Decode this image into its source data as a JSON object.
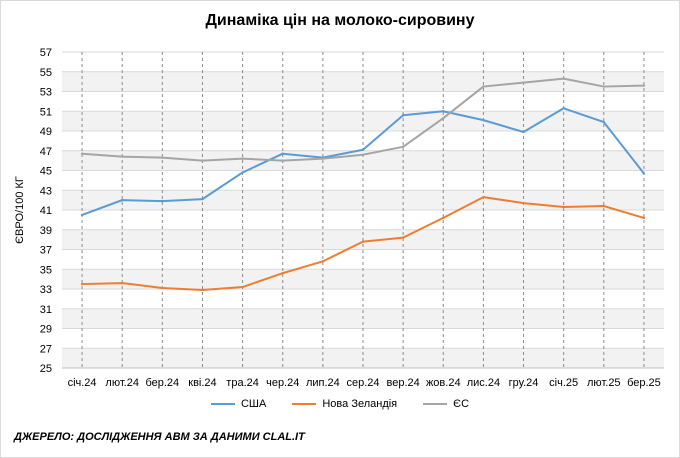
{
  "title": "Динаміка цін на молоко-сировину",
  "source": "ДЖЕРЕЛО: ДОСЛІДЖЕННЯ АВМ ЗА ДАНИМИ CLAL.IT",
  "chart_data": {
    "type": "line",
    "title": "Динаміка цін на молоко-сировину",
    "xlabel": "",
    "ylabel": "ЄВРО/100 КГ",
    "categories": [
      "січ.24",
      "лют.24",
      "бер.24",
      "кві.24",
      "тра.24",
      "чер.24",
      "лип.24",
      "сер.24",
      "вер.24",
      "жов.24",
      "лис.24",
      "гру.24",
      "січ.25",
      "лют.25",
      "бер.25"
    ],
    "ylim": [
      25,
      57
    ],
    "yticks": [
      25,
      27,
      29,
      31,
      33,
      35,
      37,
      39,
      41,
      43,
      45,
      47,
      49,
      51,
      53,
      55,
      57
    ],
    "grid": true,
    "legend_position": "bottom",
    "series": [
      {
        "name": "США",
        "color": "#5b9bd5",
        "values": [
          40.5,
          42.0,
          41.9,
          42.1,
          44.8,
          46.7,
          46.3,
          47.1,
          50.6,
          51.0,
          50.1,
          48.9,
          51.3,
          49.9,
          44.7
        ]
      },
      {
        "name": "Нова Зеландія",
        "color": "#ed7d31",
        "values": [
          33.5,
          33.6,
          33.1,
          32.9,
          33.2,
          34.6,
          35.8,
          37.8,
          38.2,
          40.2,
          42.3,
          41.7,
          41.3,
          41.4,
          40.2
        ]
      },
      {
        "name": "ЄС",
        "color": "#a5a5a5",
        "values": [
          46.7,
          46.4,
          46.3,
          46.0,
          46.2,
          46.0,
          46.2,
          46.6,
          47.4,
          50.3,
          53.5,
          53.9,
          54.3,
          53.5,
          53.6
        ]
      }
    ]
  }
}
